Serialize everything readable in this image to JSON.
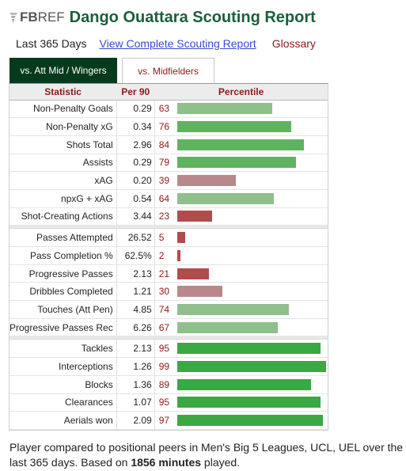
{
  "header": {
    "logo_fb": "FB",
    "logo_ref": "REF",
    "title": "Dango Ouattara Scouting Report"
  },
  "links": {
    "range": "Last 365 Days",
    "complete": "View Complete Scouting Report",
    "glossary": "Glossary"
  },
  "tabs": [
    {
      "label": "vs. Att Mid / Wingers",
      "active": true
    },
    {
      "label": "vs. Midfielders",
      "active": false
    }
  ],
  "table": {
    "headers": {
      "statistic": "Statistic",
      "per90": "Per 90",
      "percentile": "Percentile"
    },
    "groups": [
      [
        {
          "stat": "Non-Penalty Goals",
          "per90": "0.29",
          "pct": 63
        },
        {
          "stat": "Non-Penalty xG",
          "per90": "0.34",
          "pct": 76
        },
        {
          "stat": "Shots Total",
          "per90": "2.96",
          "pct": 84
        },
        {
          "stat": "Assists",
          "per90": "0.29",
          "pct": 79
        },
        {
          "stat": "xAG",
          "per90": "0.20",
          "pct": 39
        },
        {
          "stat": "npxG + xAG",
          "per90": "0.54",
          "pct": 64
        },
        {
          "stat": "Shot-Creating Actions",
          "per90": "3.44",
          "pct": 23
        }
      ],
      [
        {
          "stat": "Passes Attempted",
          "per90": "26.52",
          "pct": 5
        },
        {
          "stat": "Pass Completion %",
          "per90": "62.5%",
          "pct": 2
        },
        {
          "stat": "Progressive Passes",
          "per90": "2.13",
          "pct": 21
        },
        {
          "stat": "Dribbles Completed",
          "per90": "1.21",
          "pct": 30
        },
        {
          "stat": "Touches (Att Pen)",
          "per90": "4.85",
          "pct": 74
        },
        {
          "stat": "Progressive Passes Rec",
          "per90": "6.26",
          "pct": 67
        }
      ],
      [
        {
          "stat": "Tackles",
          "per90": "2.13",
          "pct": 95
        },
        {
          "stat": "Interceptions",
          "per90": "1.26",
          "pct": 99
        },
        {
          "stat": "Blocks",
          "per90": "1.36",
          "pct": 89
        },
        {
          "stat": "Clearances",
          "per90": "1.07",
          "pct": 95
        },
        {
          "stat": "Aerials won",
          "per90": "2.09",
          "pct": 97
        }
      ]
    ]
  },
  "colors": {
    "title": "#1b5e3a",
    "active_tab": "#063a1e",
    "percentile_text": "#8b1a1a",
    "bar_strong_green": "#3aa843",
    "bar_light_green": "#8fbf8a",
    "bar_mid_green": "#5fb35f",
    "bar_pink": "#b8888a",
    "bar_red": "#b14c4c"
  },
  "footer": {
    "text_before": "Player compared to positional peers in Men's Big 5 Leagues, UCL, UEL over the last 365 days. Based on ",
    "minutes": "1856 minutes",
    "text_after": " played."
  }
}
